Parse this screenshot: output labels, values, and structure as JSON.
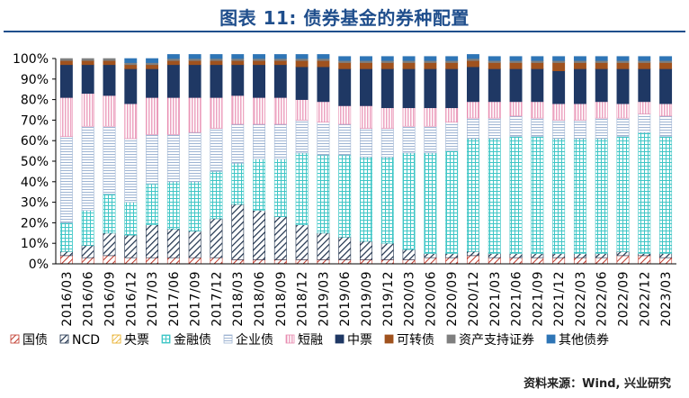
{
  "title": "图表 11: 债券基金的券种配置",
  "source": "资料来源：Wind, 兴业研究",
  "chart_data": {
    "type": "bar",
    "stacked": true,
    "categories": [
      "2016/03",
      "2016/06",
      "2016/09",
      "2016/12",
      "2017/03",
      "2017/06",
      "2017/09",
      "2017/12",
      "2018/03",
      "2018/06",
      "2018/09",
      "2018/12",
      "2019/03",
      "2019/06",
      "2019/09",
      "2019/12",
      "2020/03",
      "2020/06",
      "2020/09",
      "2020/12",
      "2021/03",
      "2021/06",
      "2021/09",
      "2021/12",
      "2022/03",
      "2022/06",
      "2022/09",
      "2022/12",
      "2023/03"
    ],
    "y_ticks": [
      "0%",
      "10%",
      "20%",
      "30%",
      "40%",
      "50%",
      "60%",
      "70%",
      "80%",
      "90%",
      "100%"
    ],
    "ylim": [
      0,
      100
    ],
    "legend_position": "bottom",
    "series": [
      {
        "name": "国债",
        "color": "#c0392b",
        "pattern": "hatch-red",
        "values": [
          4,
          3,
          4,
          3,
          3,
          3,
          3,
          3,
          2,
          2,
          2,
          2,
          2,
          2,
          2,
          2,
          2,
          3,
          3,
          4,
          3,
          3,
          3,
          3,
          3,
          3,
          4,
          4,
          3
        ]
      },
      {
        "name": "NCD",
        "color": "#1c2f4a",
        "pattern": "hatch-navy",
        "values": [
          2,
          6,
          11,
          11,
          16,
          14,
          13,
          19,
          27,
          24,
          21,
          17,
          13,
          11,
          9,
          8,
          5,
          2,
          2,
          2,
          2,
          2,
          2,
          2,
          2,
          2,
          2,
          1,
          2
        ]
      },
      {
        "name": "央票",
        "color": "#e6a817",
        "pattern": "hatch-orange",
        "values": [
          0,
          0,
          0,
          0,
          0,
          0,
          0,
          0,
          0,
          0,
          0,
          0,
          0,
          0,
          0,
          0,
          0,
          0,
          0,
          0,
          0,
          0,
          0,
          0,
          0,
          0,
          0,
          0,
          0
        ]
      },
      {
        "name": "金融债",
        "color": "#3fc6c6",
        "pattern": "grid-teal",
        "values": [
          14,
          17,
          19,
          16,
          20,
          23,
          24,
          23,
          20,
          25,
          28,
          35,
          38,
          40,
          41,
          42,
          47,
          49,
          50,
          55,
          56,
          57,
          57,
          56,
          56,
          56,
          56,
          59,
          57
        ]
      },
      {
        "name": "企业债",
        "color": "#9fb5d3",
        "pattern": "lines-blue",
        "values": [
          42,
          41,
          33,
          31,
          24,
          23,
          24,
          21,
          19,
          17,
          17,
          16,
          16,
          15,
          14,
          14,
          13,
          13,
          14,
          10,
          10,
          10,
          9,
          9,
          9,
          10,
          9,
          9,
          10
        ]
      },
      {
        "name": "短融",
        "color": "#e88cb0",
        "pattern": "vlines-pink",
        "values": [
          19,
          16,
          15,
          17,
          18,
          18,
          17,
          15,
          14,
          13,
          13,
          10,
          10,
          9,
          11,
          10,
          9,
          9,
          7,
          8,
          8,
          7,
          8,
          8,
          8,
          8,
          7,
          6,
          6
        ]
      },
      {
        "name": "中票",
        "color": "#1f3864",
        "pattern": "solid-navy",
        "values": [
          16,
          14,
          15,
          17,
          14,
          16,
          16,
          16,
          15,
          16,
          16,
          16,
          17,
          18,
          18,
          19,
          19,
          19,
          19,
          17,
          16,
          16,
          16,
          16,
          17,
          16,
          17,
          16,
          17
        ]
      },
      {
        "name": "可转债",
        "color": "#a0521e",
        "pattern": "solid-brown",
        "values": [
          2,
          2,
          2,
          2,
          2,
          2,
          2,
          2,
          2,
          2,
          2,
          3,
          3,
          3,
          3,
          3,
          3,
          3,
          3,
          3,
          3,
          3,
          3,
          4,
          3,
          3,
          3,
          3,
          3
        ]
      },
      {
        "name": "资产支持证券",
        "color": "#7f7f7f",
        "pattern": "solid-grey",
        "values": [
          1,
          1,
          1,
          1,
          1,
          1,
          1,
          1,
          1,
          1,
          1,
          1,
          1,
          1,
          1,
          1,
          1,
          1,
          1,
          1,
          1,
          1,
          1,
          1,
          1,
          1,
          1,
          1,
          1
        ]
      },
      {
        "name": "其他债券",
        "color": "#2e75b6",
        "pattern": "solid-blue",
        "values": [
          0,
          0,
          0,
          2,
          2,
          2,
          2,
          2,
          2,
          2,
          2,
          2,
          2,
          2,
          2,
          2,
          2,
          2,
          2,
          2,
          2,
          2,
          2,
          2,
          2,
          2,
          2,
          2,
          2
        ]
      }
    ]
  }
}
